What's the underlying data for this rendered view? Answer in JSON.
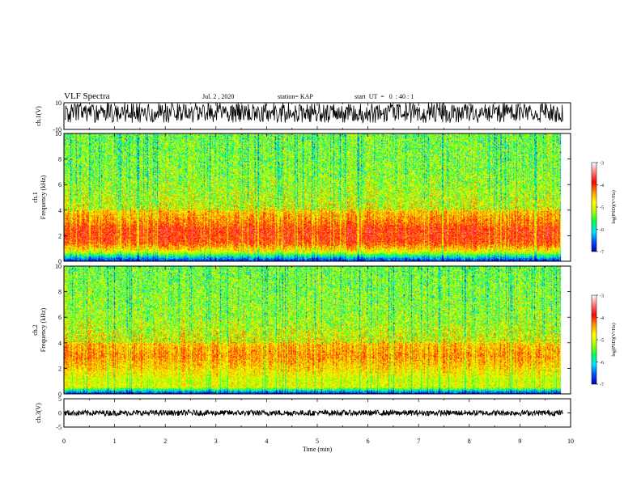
{
  "header": {
    "title": "VLF Spectra",
    "date": "Jul. 2 , 2020",
    "station": "station= KAP",
    "start_ut": "start  UT  =   0  : 40 : 1"
  },
  "colors": {
    "waveform": "#000000",
    "spectrogram_low": "#0000b4",
    "spectrogram_high": "#ff0000"
  },
  "chart_data": [
    {
      "type": "line",
      "name": "ch1-waveform",
      "ylabel": "ch.1(V)",
      "ylim": [
        -10,
        10
      ],
      "yticks": [
        "10",
        "-10"
      ],
      "xlim": [
        0,
        10
      ],
      "trace": {
        "center": 2.5,
        "half_range": 7.5
      }
    },
    {
      "type": "heatmap",
      "name": "ch1-spectrogram",
      "ylabel": "ch.1\nFrequency  (kHz)",
      "ylim": [
        0,
        10
      ],
      "yticks": [
        "0",
        "2",
        "4",
        "6",
        "8",
        "10"
      ],
      "xlim": [
        0,
        10
      ],
      "data_end_min": 9.82,
      "intensity_profile": [
        {
          "freq_khz": 0.0,
          "log_psd": -7.0
        },
        {
          "freq_khz": 0.8,
          "log_psd": -4.8
        },
        {
          "freq_khz": 1.5,
          "log_psd": -4.0
        },
        {
          "freq_khz": 2.5,
          "log_psd": -3.9
        },
        {
          "freq_khz": 3.0,
          "log_psd": -4.2
        },
        {
          "freq_khz": 4.5,
          "log_psd": -4.7
        },
        {
          "freq_khz": 7.0,
          "log_psd": -5.0
        },
        {
          "freq_khz": 10.0,
          "log_psd": -5.1
        }
      ],
      "colorbar": {
        "label": "log(PSD)(V²/Hz)",
        "range": [
          -7,
          -3
        ],
        "ticks": [
          "-3",
          "-4",
          "-5",
          "-6",
          "-7"
        ],
        "colormap": [
          "#0000b4",
          "#0050ff",
          "#00e6ff",
          "#00ff50",
          "#aaff00",
          "#ffff00",
          "#ff9600",
          "#ff0000",
          "#ff7878",
          "#ffffff"
        ]
      }
    },
    {
      "type": "heatmap",
      "name": "ch2-spectrogram",
      "ylabel": "ch.2\nFrequency  (kHz)",
      "ylim": [
        0,
        10
      ],
      "yticks": [
        "0",
        "2",
        "4",
        "6",
        "8",
        "10"
      ],
      "xlim": [
        0,
        10
      ],
      "data_end_min": 9.82,
      "intensity_profile": [
        {
          "freq_khz": 0.0,
          "log_psd": -7.0
        },
        {
          "freq_khz": 0.6,
          "log_psd": -4.8
        },
        {
          "freq_khz": 1.0,
          "log_psd": -5.0
        },
        {
          "freq_khz": 2.0,
          "log_psd": -4.6
        },
        {
          "freq_khz": 3.0,
          "log_psd": -4.3
        },
        {
          "freq_khz": 4.0,
          "log_psd": -4.5
        },
        {
          "freq_khz": 6.0,
          "log_psd": -4.9
        },
        {
          "freq_khz": 10.0,
          "log_psd": -5.1
        }
      ],
      "colorbar": {
        "label": "log(PSD)(V²/Hz)",
        "range": [
          -7,
          -3
        ],
        "ticks": [
          "-3",
          "-4",
          "-5",
          "-6",
          "-7"
        ],
        "colormap": [
          "#0000b4",
          "#0050ff",
          "#00e6ff",
          "#00ff50",
          "#aaff00",
          "#ffff00",
          "#ff9600",
          "#ff0000",
          "#ff7878",
          "#ffffff"
        ]
      }
    },
    {
      "type": "line",
      "name": "ch3-waveform",
      "ylabel": "ch.3(V)",
      "ylim": [
        -5,
        5
      ],
      "yticks": [
        "5",
        "0",
        "-5"
      ],
      "xlim": [
        0,
        10
      ],
      "trace": {
        "center": 0.0,
        "half_range": 1.0
      }
    }
  ],
  "x_axis": {
    "label": "Time  (min)",
    "ticks": [
      "0",
      "1",
      "2",
      "3",
      "4",
      "5",
      "6",
      "7",
      "8",
      "9",
      "10"
    ]
  }
}
